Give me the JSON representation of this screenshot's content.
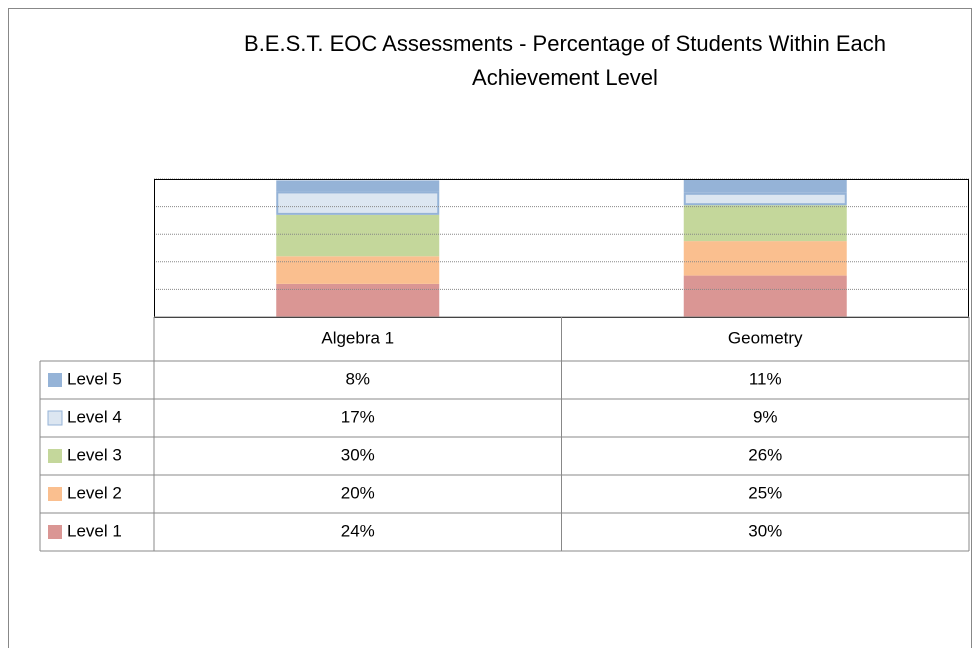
{
  "chart_data": {
    "type": "stacked_bar",
    "title": "B.E.S.T. EOC Assessments - Percentage of Students Within Each Achievement Level",
    "categories": [
      "Algebra 1",
      "Geometry"
    ],
    "series": [
      {
        "name": "Level 5",
        "color": "#95b3d7",
        "values": [
          8,
          11
        ],
        "value_labels": [
          "8%",
          "11%"
        ]
      },
      {
        "name": "Level 4",
        "color": "#dce6f1",
        "edgecolor": "#95b3d7",
        "values": [
          17,
          9
        ],
        "value_labels": [
          "17%",
          "9%"
        ]
      },
      {
        "name": "Level 3",
        "color": "#c4d79b",
        "values": [
          30,
          26
        ],
        "value_labels": [
          "30%",
          "26%"
        ]
      },
      {
        "name": "Level 2",
        "color": "#fabf8f",
        "values": [
          20,
          25
        ],
        "value_labels": [
          "20%",
          "25%"
        ]
      },
      {
        "name": "Level 1",
        "color": "#da9694",
        "values": [
          24,
          30
        ],
        "value_labels": [
          "24%",
          "30%"
        ]
      }
    ],
    "ylim": [
      0,
      100
    ],
    "yticks": [
      0,
      20,
      40,
      60,
      80,
      100
    ],
    "grid": true
  }
}
